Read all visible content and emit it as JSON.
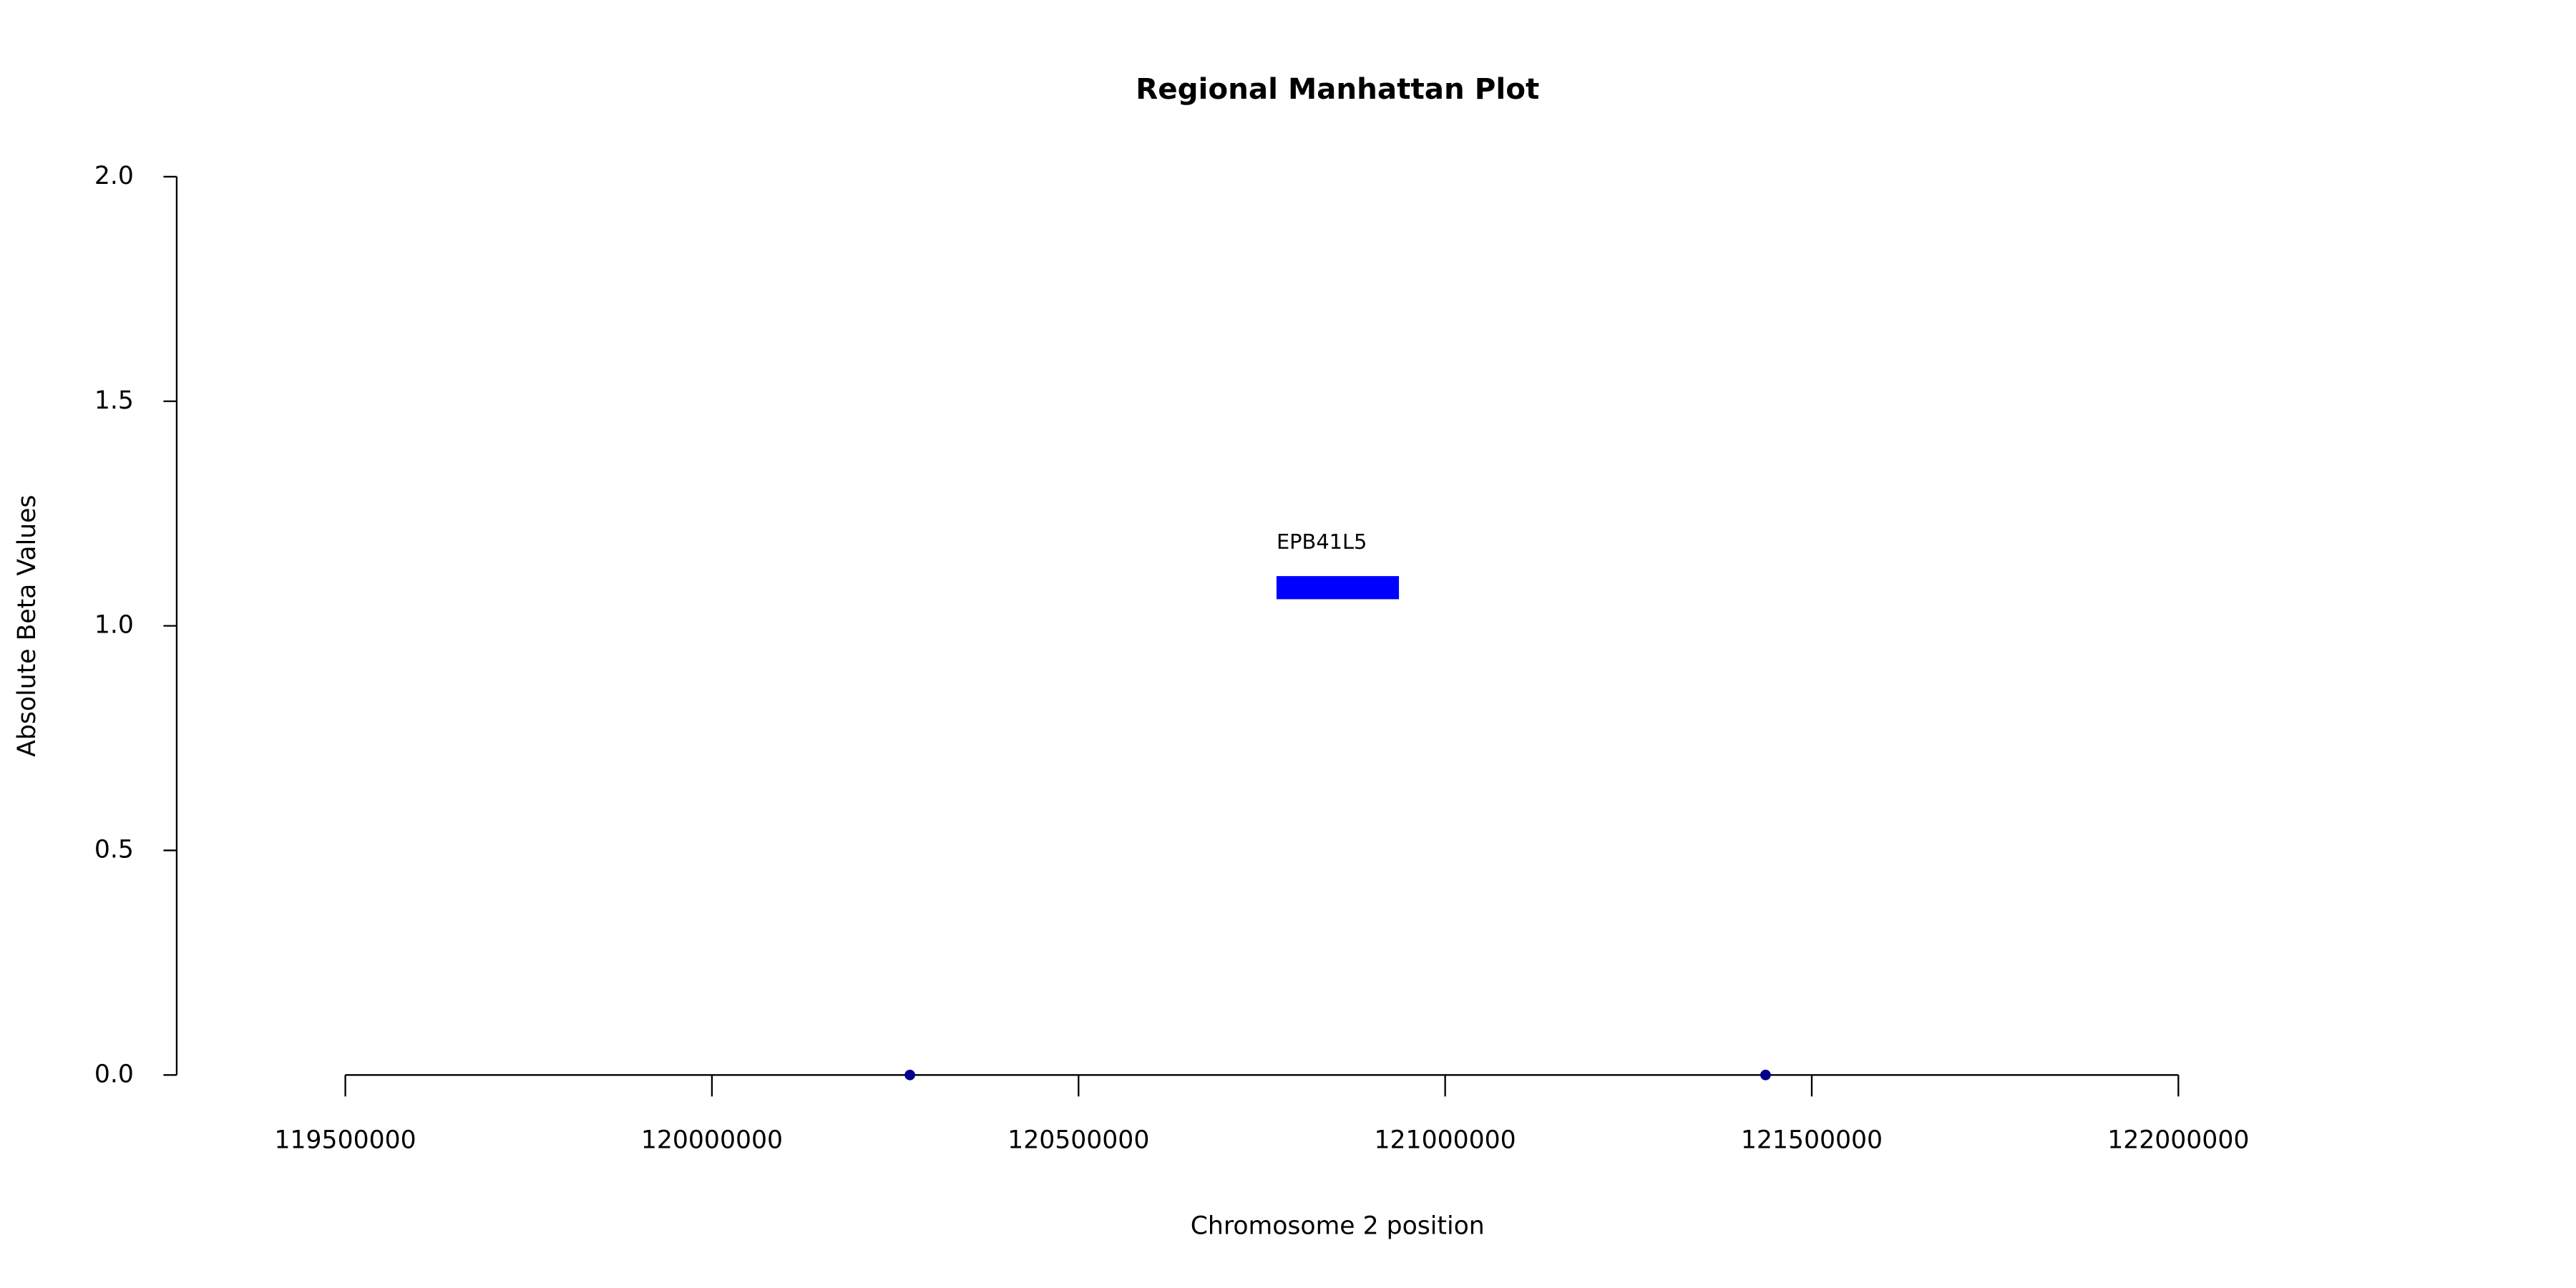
{
  "chart_data": {
    "type": "scatter",
    "title": "Regional Manhattan Plot",
    "x_label": "Chromosome 2 position",
    "y_label": "Absolute Beta Values",
    "series": [
      {
        "color": "#00008b",
        "x": [
          120270000,
          121437000
        ],
        "values": [
          0,
          0
        ]
      }
    ],
    "genes": [
      {
        "name": "EPB41L5",
        "color": "#0000ff",
        "start": 120770000,
        "end": 120937000,
        "y": 1.085
      }
    ],
    "xlim": [
      119270000,
      122200000
    ],
    "xticks": [
      119500000,
      120000000,
      120500000,
      121000000,
      121500000,
      122000000
    ],
    "ylim": [
      0,
      2
    ],
    "yticks": [
      {
        "value": 0,
        "label": "0.0"
      },
      0.5,
      {
        "value": 1,
        "label": "1.0"
      },
      1.5,
      {
        "value": 2,
        "label": "2.0"
      }
    ],
    "grid": false
  }
}
